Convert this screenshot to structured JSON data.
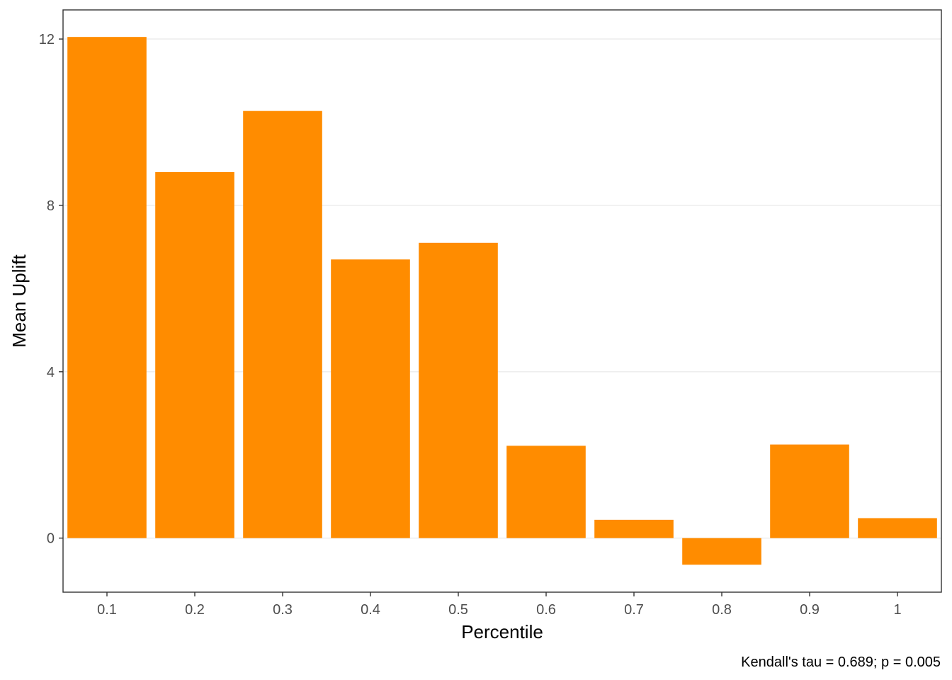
{
  "chart_data": {
    "type": "bar",
    "categories": [
      "0.1",
      "0.2",
      "0.3",
      "0.4",
      "0.5",
      "0.6",
      "0.7",
      "0.8",
      "0.9",
      "1"
    ],
    "values": [
      12.05,
      8.8,
      10.27,
      6.7,
      7.1,
      2.22,
      0.44,
      -0.64,
      2.25,
      0.48
    ],
    "title": "",
    "xlabel": "Percentile",
    "ylabel": "Mean Uplift",
    "ylim": [
      -1.3,
      12.7
    ],
    "yticks": [
      0,
      4,
      8,
      12
    ],
    "grid": true,
    "caption": "Kendall's tau = 0.689; p = 0.005",
    "colors": {
      "bar": "#FF8C00",
      "panel_border": "#333333",
      "grid": "#EBEBEB"
    }
  }
}
